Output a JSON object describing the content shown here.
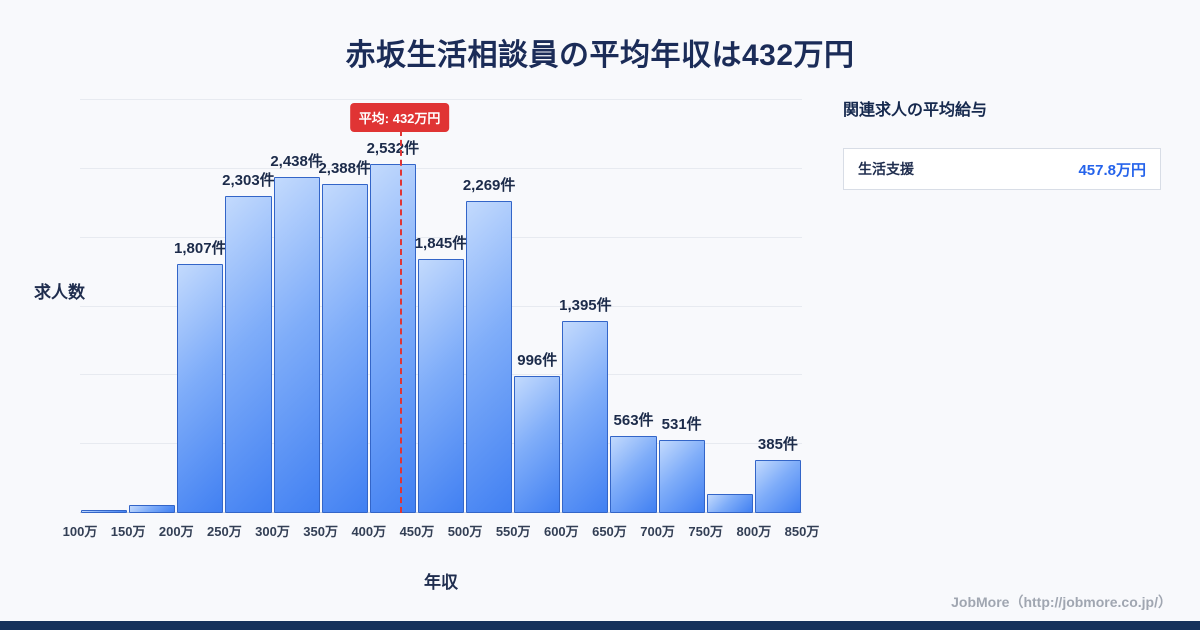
{
  "title": "赤坂生活相談員の平均年収は432万円",
  "chart_data": {
    "type": "bar",
    "title": "赤坂生活相談員の平均年収は432万円",
    "xlabel": "年収",
    "ylabel": "求人数",
    "x_range": [
      100,
      850
    ],
    "ylim": [
      0,
      3000
    ],
    "grid_step": 500,
    "grid": true,
    "x_ticks": [
      "100万",
      "150万",
      "200万",
      "250万",
      "300万",
      "350万",
      "400万",
      "450万",
      "500万",
      "550万",
      "600万",
      "650万",
      "700万",
      "750万",
      "800万",
      "850万"
    ],
    "bins": [
      {
        "range": "100万-150万",
        "value": 23,
        "label": ""
      },
      {
        "range": "150万-200万",
        "value": 57,
        "label": ""
      },
      {
        "range": "200万-250万",
        "value": 1807,
        "label": "1,807件"
      },
      {
        "range": "250万-300万",
        "value": 2303,
        "label": "2,303件"
      },
      {
        "range": "300万-350万",
        "value": 2438,
        "label": "2,438件"
      },
      {
        "range": "350万-400万",
        "value": 2388,
        "label": "2,388件"
      },
      {
        "range": "400万-450万",
        "value": 2532,
        "label": "2,532件"
      },
      {
        "range": "450万-500万",
        "value": 1845,
        "label": "1,845件"
      },
      {
        "range": "500万-550万",
        "value": 2269,
        "label": "2,269件"
      },
      {
        "range": "550万-600万",
        "value": 996,
        "label": "996件"
      },
      {
        "range": "600万-650万",
        "value": 1395,
        "label": "1,395件"
      },
      {
        "range": "650万-700万",
        "value": 563,
        "label": "563件"
      },
      {
        "range": "700万-750万",
        "value": 531,
        "label": "531件"
      },
      {
        "range": "750万-800万",
        "value": 140,
        "label": ""
      },
      {
        "range": "800万-850万",
        "value": 385,
        "label": "385件"
      }
    ],
    "average_line": {
      "x_value": 432,
      "label": "平均: 432万円",
      "color": "#e03434"
    },
    "bar_color_top": "#c3dafd",
    "bar_color_bottom": "#4180f2",
    "bar_border_color": "#3365c8",
    "legend_position": "none"
  },
  "side_panel": {
    "title": "関連求人の平均給与",
    "rows": [
      {
        "name": "生活支援",
        "value": "457.8万円"
      }
    ]
  },
  "footer": {
    "credit": "JobMore（http://jobmore.co.jp/）"
  }
}
